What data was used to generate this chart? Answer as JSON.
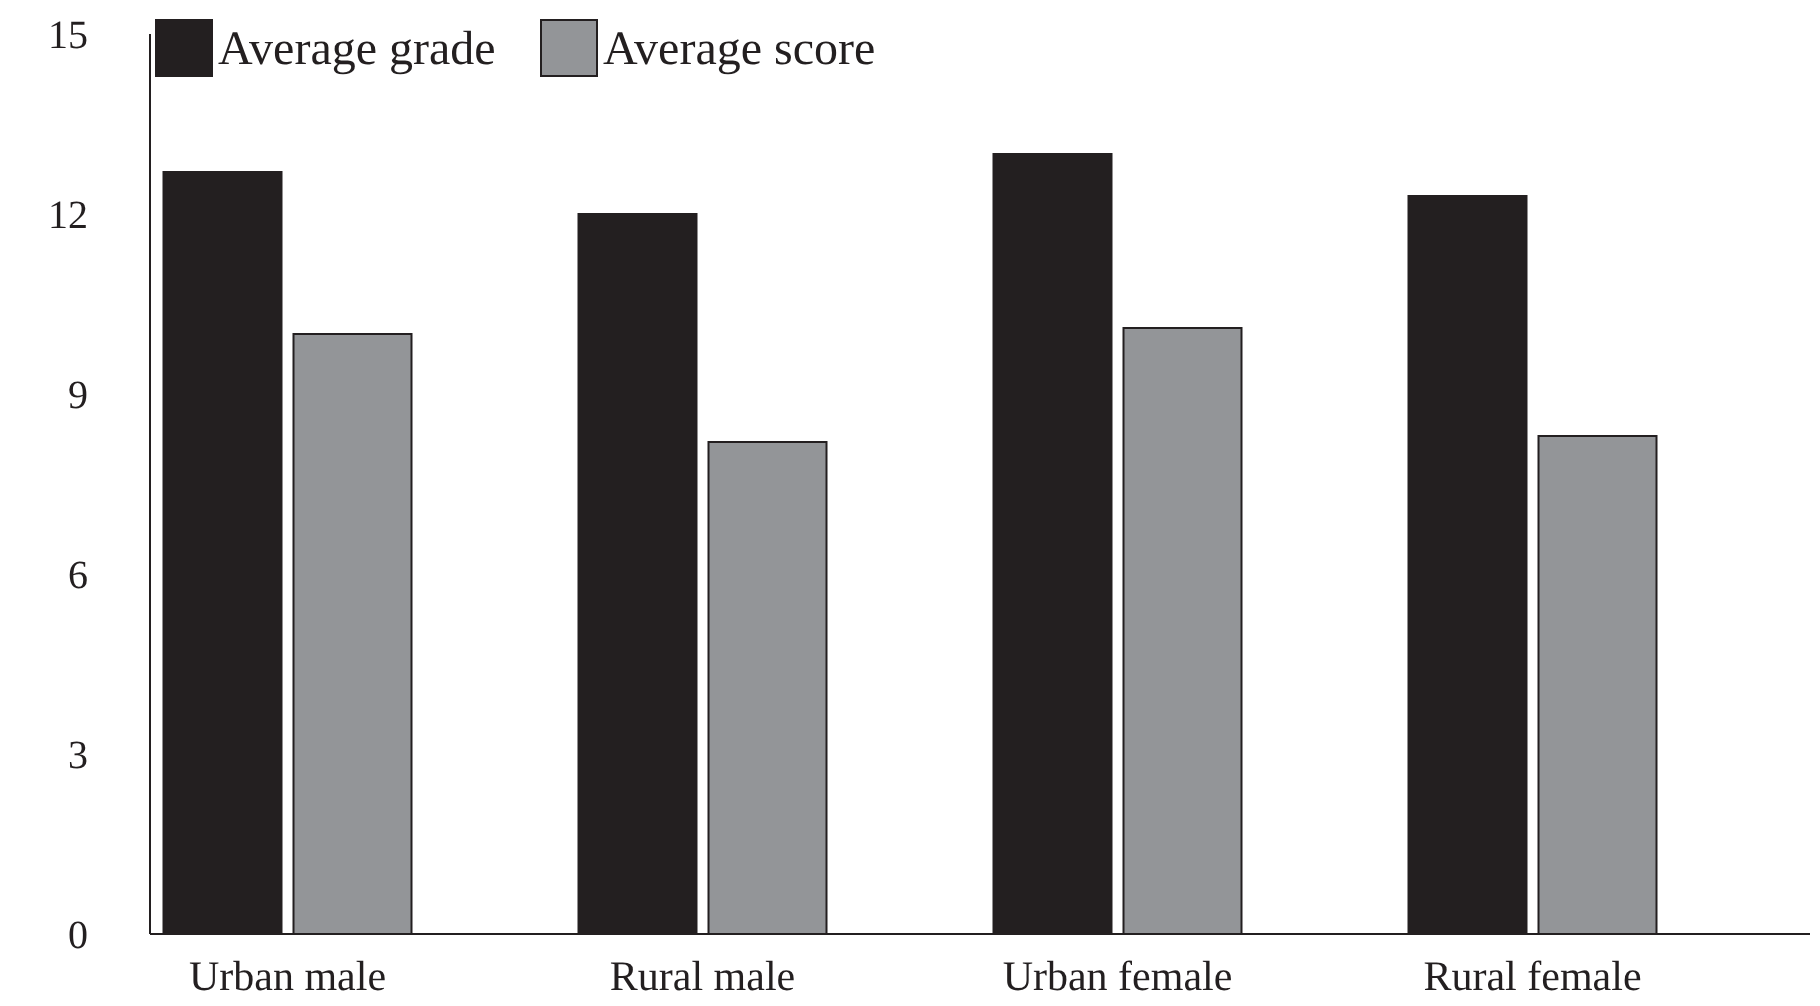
{
  "chart_data": {
    "type": "bar",
    "categories": [
      "Urban male",
      "Rural male",
      "Urban female",
      "Rural female"
    ],
    "series": [
      {
        "name": "Average grade",
        "color": "#231f20",
        "values": [
          12.7,
          12.0,
          13.0,
          12.3
        ]
      },
      {
        "name": "Average score",
        "color": "#939598",
        "values": [
          10.0,
          8.2,
          10.1,
          8.3
        ]
      }
    ],
    "ylim": [
      0,
      15
    ],
    "yticks": [
      0,
      3,
      6,
      9,
      12,
      15
    ],
    "grid": false,
    "legend": "top left"
  }
}
